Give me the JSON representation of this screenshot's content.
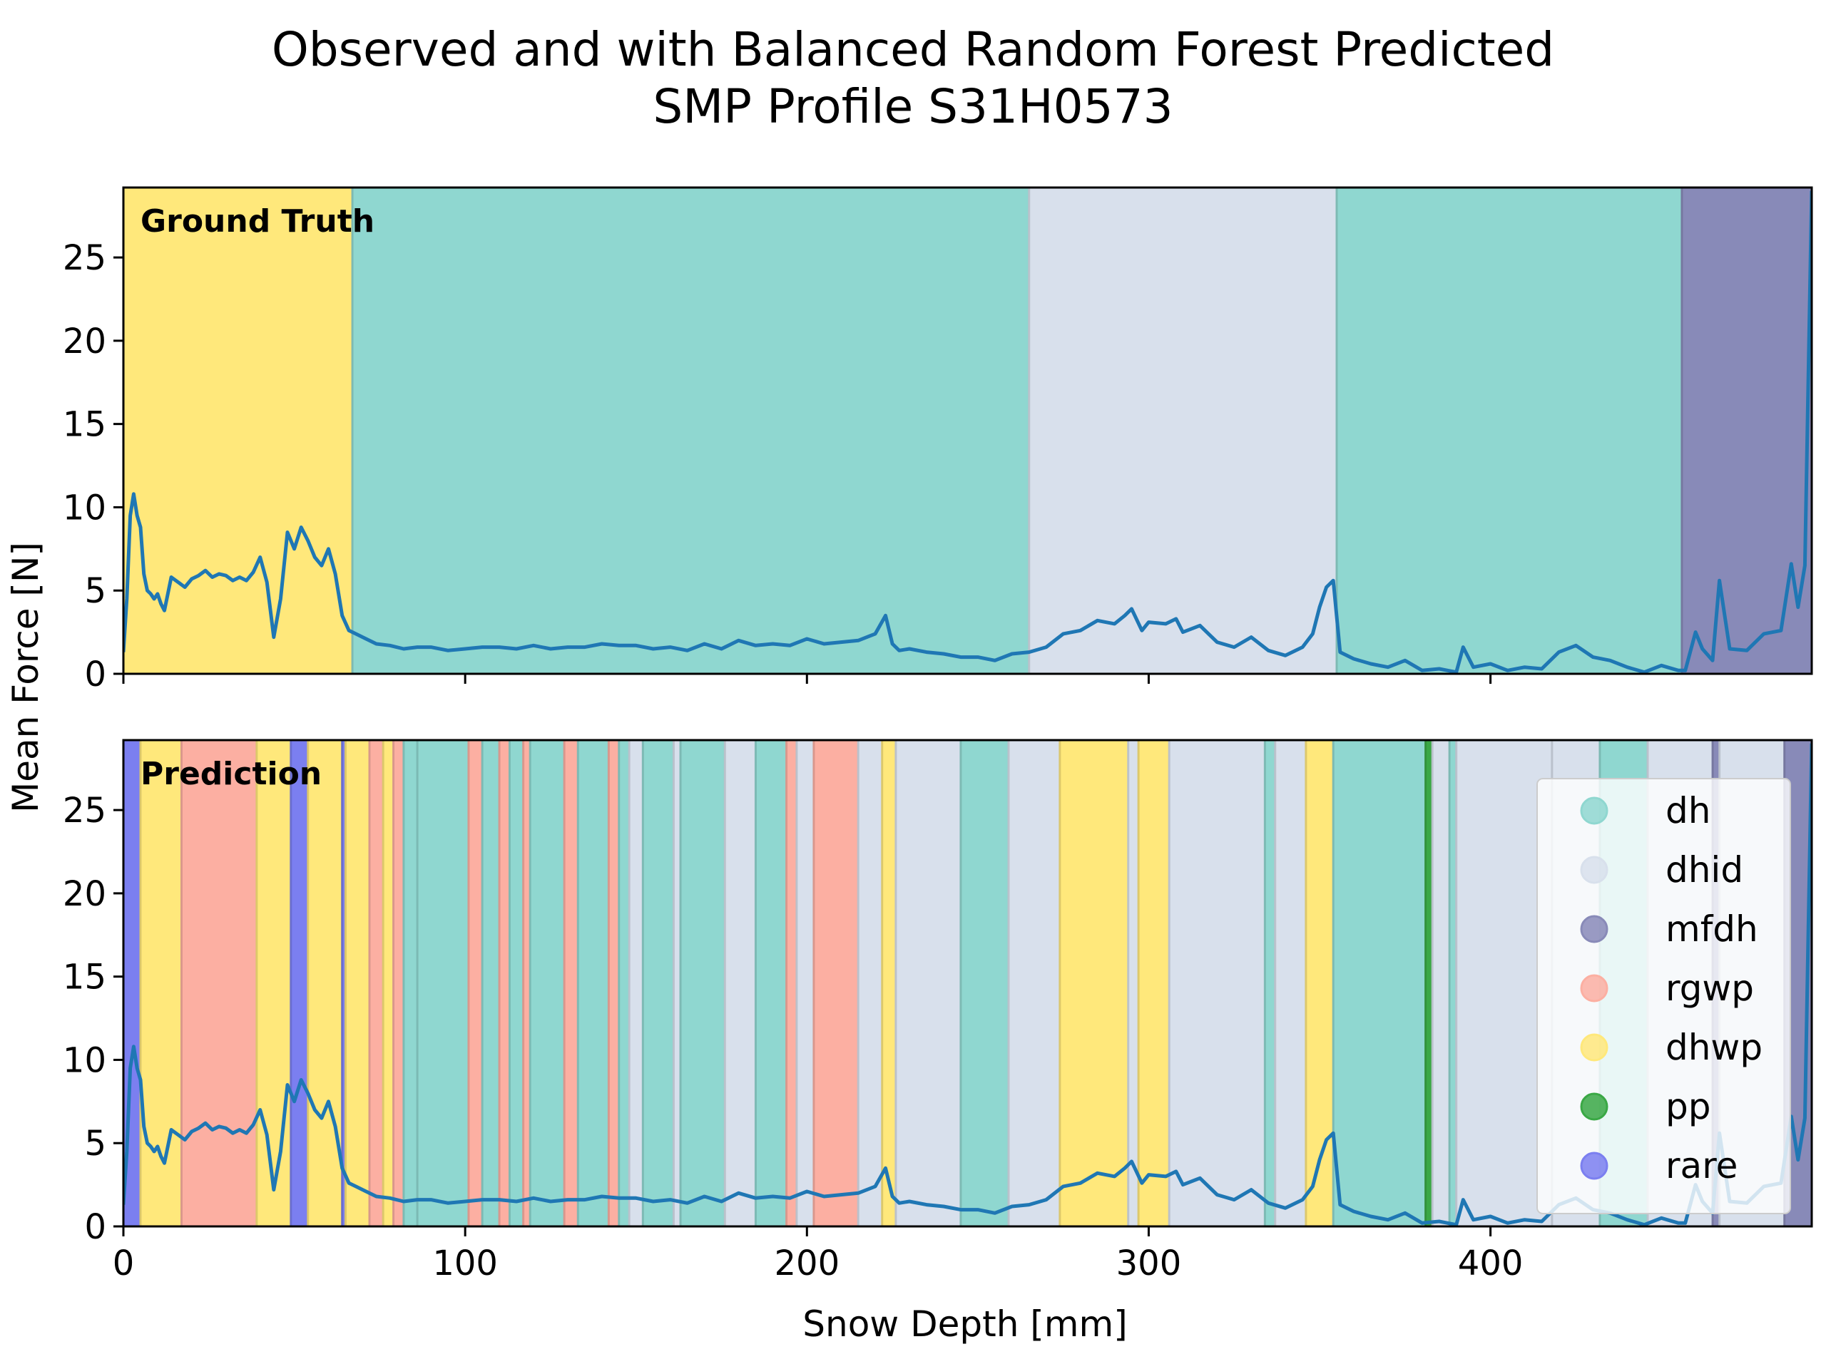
{
  "title_line1": "Observed and with Balanced Random Forest Predicted",
  "title_line2": "SMP Profile S31H0573",
  "xlabel": "Snow Depth [mm]",
  "ylabel": "Mean Force [N]",
  "chart_data": {
    "type": "line",
    "title": "Observed and with Balanced Random Forest Predicted SMP Profile S31H0573",
    "xlabel": "Snow Depth [mm]",
    "ylabel": "Mean Force [N]",
    "xlim": [
      0,
      494
    ],
    "ylim": [
      0,
      29.2
    ],
    "xticks": [
      0,
      100,
      200,
      300,
      400
    ],
    "yticks": [
      0,
      5,
      10,
      15,
      20,
      25
    ],
    "legend_placement": "right",
    "grid": false,
    "class_colors": {
      "dh": "#8fd7d0",
      "dhid": "#d8e0ec",
      "mfdh": "#888ab8",
      "rgwp": "#fcafa2",
      "dhwp": "#ffe87b",
      "pp": "#3aa845",
      "rare": "#7b7ff0"
    },
    "legend": [
      {
        "label": "dh",
        "color": "#8fd7d0"
      },
      {
        "label": "dhid",
        "color": "#d8e0ec"
      },
      {
        "label": "mfdh",
        "color": "#888ab8"
      },
      {
        "label": "rgwp",
        "color": "#fcafa2"
      },
      {
        "label": "dhwp",
        "color": "#ffe87b"
      },
      {
        "label": "pp",
        "color": "#3aa845"
      },
      {
        "label": "rare",
        "color": "#7b7ff0"
      }
    ],
    "line_color": "#1f77b4",
    "series": {
      "x": [
        0,
        1,
        2,
        3,
        4,
        5,
        6,
        7,
        8,
        9,
        10,
        11,
        12,
        14,
        16,
        18,
        20,
        22,
        24,
        26,
        28,
        30,
        32,
        34,
        36,
        38,
        40,
        42,
        44,
        46,
        48,
        50,
        52,
        54,
        56,
        58,
        60,
        62,
        64,
        66,
        68,
        70,
        74,
        78,
        82,
        86,
        90,
        95,
        100,
        105,
        110,
        115,
        120,
        125,
        130,
        135,
        140,
        145,
        150,
        155,
        160,
        165,
        170,
        175,
        180,
        185,
        190,
        195,
        200,
        205,
        210,
        215,
        220,
        223,
        225,
        227,
        230,
        235,
        240,
        245,
        250,
        255,
        260,
        265,
        270,
        275,
        280,
        285,
        290,
        293,
        295,
        298,
        300,
        305,
        308,
        310,
        315,
        320,
        325,
        330,
        335,
        340,
        345,
        348,
        350,
        352,
        354,
        356,
        360,
        365,
        370,
        375,
        380,
        385,
        390,
        392,
        395,
        400,
        405,
        410,
        415,
        420,
        425,
        430,
        435,
        440,
        445,
        450,
        455,
        457,
        460,
        462,
        465,
        467,
        470,
        475,
        480,
        485,
        488,
        490,
        492,
        494
      ],
      "y": [
        1.3,
        4.5,
        9.5,
        10.8,
        9.5,
        8.8,
        6.0,
        5.0,
        4.8,
        4.5,
        4.8,
        4.2,
        3.8,
        5.8,
        5.5,
        5.2,
        5.7,
        5.9,
        6.2,
        5.8,
        6.0,
        5.9,
        5.6,
        5.8,
        5.6,
        6.1,
        7.0,
        5.5,
        2.2,
        4.5,
        8.5,
        7.5,
        8.8,
        8.0,
        7.0,
        6.5,
        7.5,
        6.0,
        3.5,
        2.6,
        2.4,
        2.2,
        1.8,
        1.7,
        1.5,
        1.6,
        1.6,
        1.4,
        1.5,
        1.6,
        1.6,
        1.5,
        1.7,
        1.5,
        1.6,
        1.6,
        1.8,
        1.7,
        1.7,
        1.5,
        1.6,
        1.4,
        1.8,
        1.5,
        2.0,
        1.7,
        1.8,
        1.7,
        2.1,
        1.8,
        1.9,
        2.0,
        2.4,
        3.5,
        1.8,
        1.4,
        1.5,
        1.3,
        1.2,
        1.0,
        1.0,
        0.8,
        1.2,
        1.3,
        1.6,
        2.4,
        2.6,
        3.2,
        3.0,
        3.5,
        3.9,
        2.6,
        3.1,
        3.0,
        3.3,
        2.5,
        2.9,
        1.9,
        1.6,
        2.2,
        1.4,
        1.1,
        1.6,
        2.4,
        4.0,
        5.2,
        5.6,
        1.3,
        0.9,
        0.6,
        0.4,
        0.8,
        0.2,
        0.3,
        0.1,
        1.6,
        0.4,
        0.6,
        0.2,
        0.4,
        0.3,
        1.3,
        1.7,
        1.0,
        0.8,
        0.4,
        0.1,
        0.5,
        0.2,
        0.2,
        2.5,
        1.5,
        0.8,
        5.6,
        1.5,
        1.4,
        2.4,
        2.6,
        6.6,
        4.0,
        6.5,
        29.0
      ]
    },
    "panels": [
      {
        "label": "Ground Truth",
        "segments": [
          {
            "start": 0,
            "end": 67,
            "class": "dhwp"
          },
          {
            "start": 67,
            "end": 265,
            "class": "dh"
          },
          {
            "start": 265,
            "end": 355,
            "class": "dhid"
          },
          {
            "start": 355,
            "end": 456,
            "class": "dh"
          },
          {
            "start": 456,
            "end": 494,
            "class": "mfdh"
          }
        ]
      },
      {
        "label": "Prediction",
        "segments": [
          {
            "start": 0,
            "end": 5,
            "class": "rare"
          },
          {
            "start": 5,
            "end": 17,
            "class": "dhwp"
          },
          {
            "start": 17,
            "end": 39,
            "class": "rgwp"
          },
          {
            "start": 39,
            "end": 49,
            "class": "dhwp"
          },
          {
            "start": 49,
            "end": 54,
            "class": "rare"
          },
          {
            "start": 54,
            "end": 64,
            "class": "dhwp"
          },
          {
            "start": 64,
            "end": 65,
            "class": "rare"
          },
          {
            "start": 65,
            "end": 72,
            "class": "dhwp"
          },
          {
            "start": 72,
            "end": 76,
            "class": "rgwp"
          },
          {
            "start": 76,
            "end": 79,
            "class": "dhwp"
          },
          {
            "start": 79,
            "end": 82,
            "class": "rgwp"
          },
          {
            "start": 82,
            "end": 86,
            "class": "dh"
          },
          {
            "start": 86,
            "end": 101,
            "class": "dh"
          },
          {
            "start": 101,
            "end": 105,
            "class": "rgwp"
          },
          {
            "start": 105,
            "end": 110,
            "class": "dh"
          },
          {
            "start": 110,
            "end": 113,
            "class": "rgwp"
          },
          {
            "start": 113,
            "end": 117,
            "class": "dh"
          },
          {
            "start": 117,
            "end": 119,
            "class": "rgwp"
          },
          {
            "start": 119,
            "end": 129,
            "class": "dh"
          },
          {
            "start": 129,
            "end": 133,
            "class": "rgwp"
          },
          {
            "start": 133,
            "end": 142,
            "class": "dh"
          },
          {
            "start": 142,
            "end": 145,
            "class": "rgwp"
          },
          {
            "start": 145,
            "end": 148,
            "class": "dh"
          },
          {
            "start": 148,
            "end": 152,
            "class": "dhid"
          },
          {
            "start": 152,
            "end": 161,
            "class": "dh"
          },
          {
            "start": 161,
            "end": 163,
            "class": "dhid"
          },
          {
            "start": 163,
            "end": 176,
            "class": "dh"
          },
          {
            "start": 176,
            "end": 185,
            "class": "dhid"
          },
          {
            "start": 185,
            "end": 194,
            "class": "dh"
          },
          {
            "start": 194,
            "end": 197,
            "class": "rgwp"
          },
          {
            "start": 197,
            "end": 202,
            "class": "dhid"
          },
          {
            "start": 202,
            "end": 215,
            "class": "rgwp"
          },
          {
            "start": 215,
            "end": 222,
            "class": "dhid"
          },
          {
            "start": 222,
            "end": 226,
            "class": "dhwp"
          },
          {
            "start": 226,
            "end": 245,
            "class": "dhid"
          },
          {
            "start": 245,
            "end": 259,
            "class": "dh"
          },
          {
            "start": 259,
            "end": 274,
            "class": "dhid"
          },
          {
            "start": 274,
            "end": 294,
            "class": "dhwp"
          },
          {
            "start": 294,
            "end": 297,
            "class": "dhid"
          },
          {
            "start": 297,
            "end": 306,
            "class": "dhwp"
          },
          {
            "start": 306,
            "end": 334,
            "class": "dhid"
          },
          {
            "start": 334,
            "end": 337,
            "class": "dh"
          },
          {
            "start": 337,
            "end": 346,
            "class": "dhid"
          },
          {
            "start": 346,
            "end": 354,
            "class": "dhwp"
          },
          {
            "start": 354,
            "end": 381,
            "class": "dh"
          },
          {
            "start": 381,
            "end": 383,
            "class": "pp"
          },
          {
            "start": 383,
            "end": 388,
            "class": "dhid"
          },
          {
            "start": 388,
            "end": 390,
            "class": "dh"
          },
          {
            "start": 390,
            "end": 418,
            "class": "dhid"
          },
          {
            "start": 418,
            "end": 432,
            "class": "dhid"
          },
          {
            "start": 432,
            "end": 446,
            "class": "dh"
          },
          {
            "start": 446,
            "end": 465,
            "class": "dhid"
          },
          {
            "start": 465,
            "end": 467,
            "class": "mfdh"
          },
          {
            "start": 467,
            "end": 486,
            "class": "dhid"
          },
          {
            "start": 486,
            "end": 494,
            "class": "mfdh"
          }
        ]
      }
    ]
  }
}
